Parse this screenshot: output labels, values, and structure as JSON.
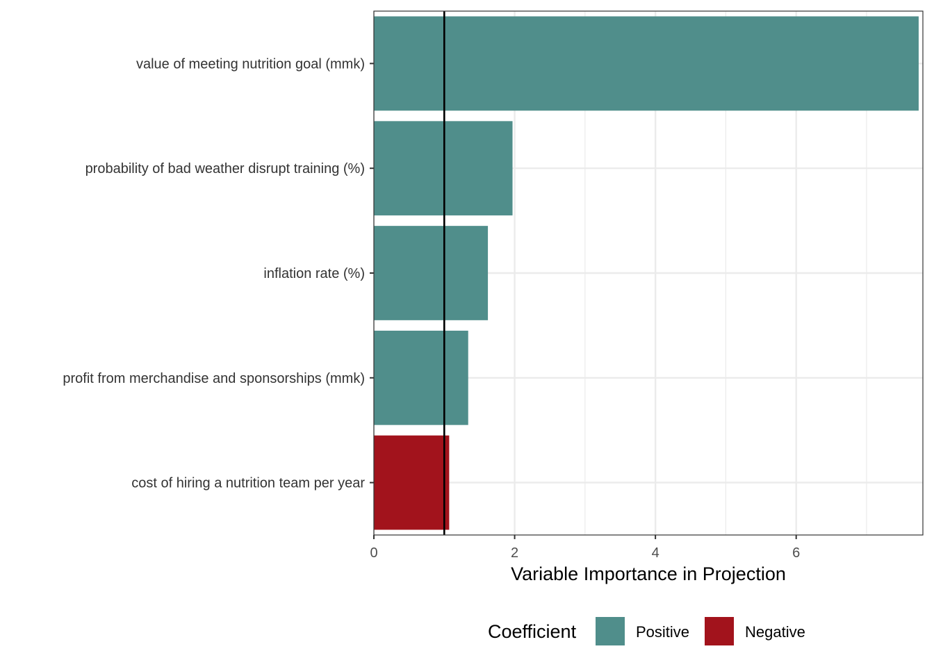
{
  "chart_data": {
    "type": "bar",
    "orientation": "horizontal",
    "categories": [
      "value of meeting nutrition goal (mmk)",
      "probability of bad weather disrupt training (%)",
      "inflation rate (%)",
      "profit from merchandise and sponsorships (mmk)",
      "cost of hiring a nutrition team per year"
    ],
    "values": [
      7.74,
      1.97,
      1.62,
      1.34,
      1.07
    ],
    "coefficient": [
      "Positive",
      "Positive",
      "Positive",
      "Positive",
      "Negative"
    ],
    "xlabel": "Variable Importance in Projection",
    "ylabel": "",
    "xlim": [
      0,
      7.8
    ],
    "xticks": [
      0,
      2,
      4,
      6
    ],
    "reference_line": 1,
    "grid": true,
    "legend": {
      "title": "Coefficient",
      "position": "bottom",
      "entries": [
        {
          "label": "Positive",
          "color": "#508e8b"
        },
        {
          "label": "Negative",
          "color": "#a2131c"
        }
      ]
    }
  }
}
